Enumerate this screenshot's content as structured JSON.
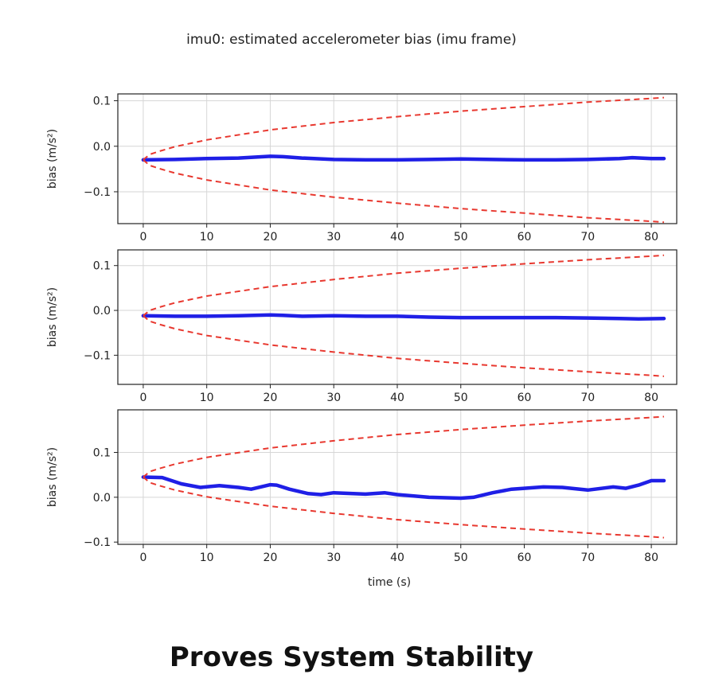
{
  "title": "imu0: estimated accelerometer bias (imu frame)",
  "caption": "Proves System Stability",
  "chart_data": [
    {
      "type": "line",
      "title": "imu0: estimated accelerometer bias (imu frame)",
      "xlabel": "",
      "ylabel": "bias (m/s²)",
      "xlim": [
        -4,
        84
      ],
      "ylim": [
        -0.17,
        0.115
      ],
      "xticks": [
        0,
        10,
        20,
        30,
        40,
        50,
        60,
        70,
        80
      ],
      "yticks": [
        0.1,
        0.0,
        -0.1
      ],
      "ytick_labels": [
        "0.1",
        "0.0",
        "−0.1"
      ],
      "grid": true,
      "series": [
        {
          "style": "solid",
          "color": "#1f1fe6",
          "x": [
            0,
            5,
            10,
            15,
            20,
            22,
            25,
            30,
            35,
            40,
            45,
            50,
            55,
            60,
            65,
            70,
            75,
            77,
            80,
            82
          ],
          "y": [
            -0.03,
            -0.029,
            -0.027,
            -0.026,
            -0.022,
            -0.023,
            -0.026,
            -0.029,
            -0.03,
            -0.03,
            -0.029,
            -0.028,
            -0.029,
            -0.03,
            -0.03,
            -0.029,
            -0.027,
            -0.025,
            -0.027,
            -0.027
          ]
        },
        {
          "style": "dashed",
          "color": "#e8382f",
          "x": [
            0,
            1,
            2.5,
            5,
            10,
            20,
            30,
            40,
            50,
            60,
            70,
            80,
            82
          ],
          "y": [
            -0.03,
            -0.018,
            -0.011,
            -0.001,
            0.014,
            0.036,
            0.052,
            0.065,
            0.077,
            0.087,
            0.097,
            0.105,
            0.107
          ]
        },
        {
          "style": "dashed",
          "color": "#e8382f",
          "x": [
            0,
            1,
            2.5,
            5,
            10,
            20,
            30,
            40,
            50,
            60,
            70,
            80,
            82
          ],
          "y": [
            -0.03,
            -0.042,
            -0.049,
            -0.059,
            -0.074,
            -0.096,
            -0.112,
            -0.125,
            -0.137,
            -0.147,
            -0.157,
            -0.165,
            -0.167
          ]
        }
      ]
    },
    {
      "type": "line",
      "xlabel": "",
      "ylabel": "bias (m/s²)",
      "xlim": [
        -4,
        84
      ],
      "ylim": [
        -0.165,
        0.135
      ],
      "xticks": [
        0,
        10,
        20,
        30,
        40,
        50,
        60,
        70,
        80
      ],
      "yticks": [
        0.1,
        0.0,
        -0.1
      ],
      "ytick_labels": [
        "0.1",
        "0.0",
        "−0.1"
      ],
      "grid": true,
      "series": [
        {
          "style": "solid",
          "color": "#1f1fe6",
          "x": [
            0,
            5,
            10,
            15,
            20,
            22,
            25,
            30,
            35,
            40,
            45,
            50,
            55,
            60,
            65,
            70,
            75,
            78,
            82
          ],
          "y": [
            -0.012,
            -0.013,
            -0.013,
            -0.012,
            -0.01,
            -0.011,
            -0.013,
            -0.012,
            -0.013,
            -0.013,
            -0.015,
            -0.016,
            -0.016,
            -0.016,
            -0.016,
            -0.017,
            -0.018,
            -0.019,
            -0.018
          ]
        },
        {
          "style": "dashed",
          "color": "#e8382f",
          "x": [
            0,
            1,
            2.5,
            5,
            10,
            20,
            30,
            40,
            50,
            60,
            70,
            80,
            82
          ],
          "y": [
            -0.012,
            0.0,
            0.007,
            0.017,
            0.032,
            0.053,
            0.069,
            0.083,
            0.094,
            0.104,
            0.113,
            0.121,
            0.123
          ]
        },
        {
          "style": "dashed",
          "color": "#e8382f",
          "x": [
            0,
            1,
            2.5,
            5,
            10,
            20,
            30,
            40,
            50,
            60,
            70,
            80,
            82
          ],
          "y": [
            -0.012,
            -0.024,
            -0.031,
            -0.041,
            -0.056,
            -0.077,
            -0.093,
            -0.107,
            -0.118,
            -0.128,
            -0.137,
            -0.145,
            -0.147
          ]
        }
      ]
    },
    {
      "type": "line",
      "xlabel": "time (s)",
      "ylabel": "bias (m/s²)",
      "xlim": [
        -4,
        84
      ],
      "ylim": [
        -0.105,
        0.195
      ],
      "xticks": [
        0,
        10,
        20,
        30,
        40,
        50,
        60,
        70,
        80
      ],
      "yticks": [
        0.1,
        0.0,
        -0.1
      ],
      "ytick_labels": [
        "0.1",
        "0.0",
        "−0.1"
      ],
      "grid": true,
      "series": [
        {
          "style": "solid",
          "color": "#1f1fe6",
          "x": [
            0,
            3,
            6,
            9,
            12,
            15,
            17,
            20,
            21,
            23,
            26,
            28,
            30,
            35,
            38,
            40,
            45,
            50,
            52,
            55,
            58,
            60,
            63,
            66,
            70,
            74,
            76,
            78,
            80,
            82
          ],
          "y": [
            0.045,
            0.044,
            0.03,
            0.022,
            0.026,
            0.022,
            0.018,
            0.028,
            0.027,
            0.018,
            0.008,
            0.006,
            0.01,
            0.007,
            0.01,
            0.006,
            0.0,
            -0.002,
            0.0,
            0.01,
            0.018,
            0.02,
            0.023,
            0.022,
            0.016,
            0.023,
            0.02,
            0.027,
            0.037,
            0.037
          ]
        },
        {
          "style": "dashed",
          "color": "#e8382f",
          "x": [
            0,
            1,
            2.5,
            5,
            10,
            20,
            30,
            40,
            50,
            60,
            70,
            80,
            82
          ],
          "y": [
            0.045,
            0.057,
            0.064,
            0.074,
            0.089,
            0.11,
            0.126,
            0.14,
            0.151,
            0.161,
            0.17,
            0.178,
            0.18
          ]
        },
        {
          "style": "dashed",
          "color": "#e8382f",
          "x": [
            0,
            1,
            2.5,
            5,
            10,
            20,
            30,
            40,
            50,
            60,
            70,
            80,
            82
          ],
          "y": [
            0.045,
            0.033,
            0.026,
            0.016,
            0.001,
            -0.02,
            -0.036,
            -0.05,
            -0.061,
            -0.071,
            -0.08,
            -0.088,
            -0.09
          ]
        }
      ]
    }
  ]
}
